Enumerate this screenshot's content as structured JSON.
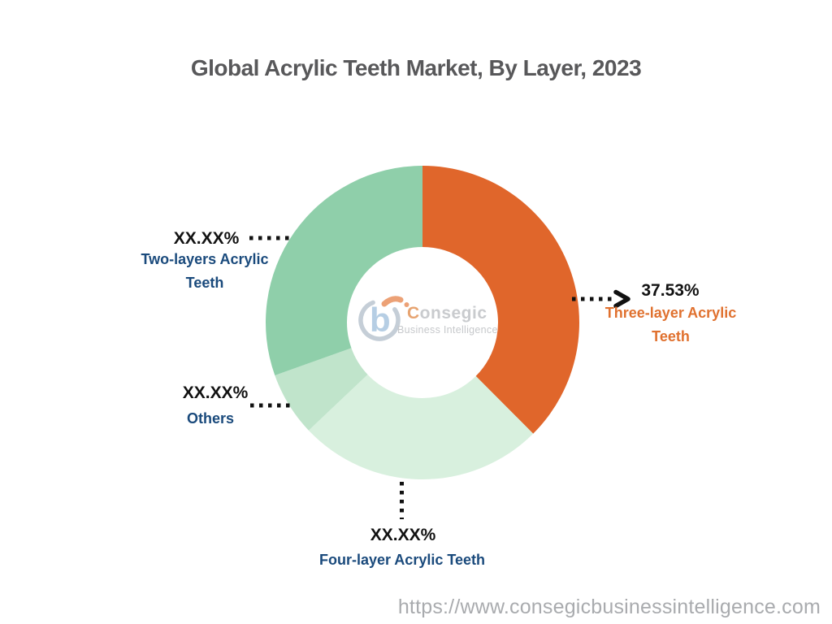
{
  "page": {
    "title": "Global Acrylic Teeth Market, By Layer, 2023",
    "source_url": "https://www.consegicbusinessintelligence.com"
  },
  "logo": {
    "brand": "Consegic",
    "tagline": "Business Intelligence"
  },
  "chart_data": {
    "type": "pie",
    "subtype": "donut",
    "title": "Global Acrylic Teeth Market, By Layer, 2023",
    "unit": "%",
    "start_angle_deg": 0,
    "direction": "clockwise",
    "categories": [
      "Three-layer Acrylic Teeth",
      "Four-layer Acrylic Teeth",
      "Others",
      "Two-layers Acrylic Teeth"
    ],
    "values": [
      37.53,
      25.4,
      6.6,
      30.47
    ],
    "values_note": "Only the Three-layer share (37.53%) is shown; the other shares are masked as XX.XX% and estimated from arc angles.",
    "value_display_labels": [
      "37.53%",
      "XX.XX%",
      "XX.XX%",
      "XX.XX%"
    ],
    "colors": [
      "#e0662b",
      "#d8f0de",
      "#c0e4cb",
      "#8fcfaa"
    ],
    "label_text_colors": [
      "#e0712f",
      "#1a4a7c",
      "#1a4a7c",
      "#1a4a7c"
    ],
    "slices": [
      {
        "label": "Three-layer Acrylic Teeth",
        "display_pct": "37.53%",
        "value": 37.53,
        "color": "#e0662b"
      },
      {
        "label": "Four-layer Acrylic Teeth",
        "display_pct": "XX.XX%",
        "value": 25.4,
        "color": "#d8f0de"
      },
      {
        "label": "Others",
        "display_pct": "XX.XX%",
        "value": 6.6,
        "color": "#c0e4cb"
      },
      {
        "label": "Two-layers Acrylic Teeth",
        "display_pct": "XX.XX%",
        "value": 30.47,
        "color": "#8fcfaa"
      }
    ]
  }
}
